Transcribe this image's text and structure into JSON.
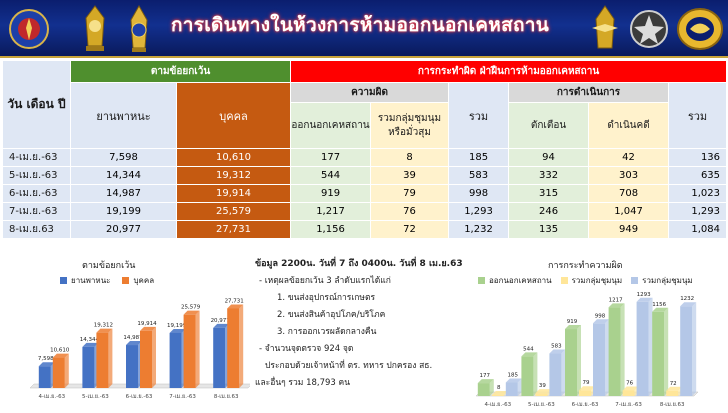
{
  "header": {
    "title": "การเดินทางในห้วงการห้ามออกนอกเคหสถาน"
  },
  "table": {
    "date_header": "วัน เดือน ปี",
    "exempt_header": "ตามข้อยกเว้น",
    "violate_header": "การกระทำผิด ฝ่าฝืนการห้ามออกเคหสถาน",
    "vehicle_header": "ยานพาหนะ",
    "person_header": "บุคคล",
    "offense_header": "ความผิด",
    "offense_out_header": "ออกนอกเคหสถาน",
    "offense_group_header": "รวมกลุ่มชุมนุม หรือมั่วสุม",
    "total_header": "รวม",
    "action_header": "การดำเนินการ",
    "warn_header": "ตักเตือน",
    "prosecute_header": "ดำเนินคดี",
    "total2_header": "รวม",
    "rows": [
      {
        "date": "4-เม.ย.-63",
        "vehicle": "7,598",
        "person": "10,610",
        "out": "177",
        "group": "8",
        "total": "185",
        "warn": "94",
        "prosecute": "42",
        "total2": "136"
      },
      {
        "date": "5-เม.ย.-63",
        "vehicle": "14,344",
        "person": "19,312",
        "out": "544",
        "group": "39",
        "total": "583",
        "warn": "332",
        "prosecute": "303",
        "total2": "635"
      },
      {
        "date": "6-เม.ย.-63",
        "vehicle": "14,987",
        "person": "19,914",
        "out": "919",
        "group": "79",
        "total": "998",
        "warn": "315",
        "prosecute": "708",
        "total2": "1,023"
      },
      {
        "date": "7-เม.ย.-63",
        "vehicle": "19,199",
        "person": "25,579",
        "out": "1,217",
        "group": "76",
        "total": "1,293",
        "warn": "246",
        "prosecute": "1,047",
        "total2": "1,293"
      },
      {
        "date": "8-เม.ย.63",
        "vehicle": "20,977",
        "person": "27,731",
        "out": "1,156",
        "group": "72",
        "total": "1,232",
        "warn": "135",
        "prosecute": "949",
        "total2": "1,084"
      }
    ]
  },
  "info": {
    "title": "ข้อมูล 2200น. วันที่ 7 ถึง 0400น. วันที่ 8 เม.ย.63",
    "lines": [
      "- เหตุผลข้อยกเว้น 3 ลำดับแรกได้แก่",
      "1. ขนส่งอุปกรณ์การเกษตร",
      "2. ขนส่งสินค้าอุปโภค/บริโภค",
      "3. การออกเวรผลัดกลางคืน",
      "- จำนวนจุดตรวจ 924 จุด",
      "ประกอบด้วยเจ้าหน้าที่ ตร. ทหาร ปกครอง สธ.",
      "และอื่นๆ รวม 18,793 คน"
    ]
  },
  "chart_data": [
    {
      "type": "bar",
      "title": "ตามข้อยกเว้น",
      "categories": [
        "4-เม.ย.-63",
        "5-เม.ย.-63",
        "6-เม.ย.-63",
        "7-เม.ย.-63",
        "8-เม.ย.63"
      ],
      "series": [
        {
          "name": "ยานพาหนะ",
          "values": [
            7598,
            14344,
            14987,
            19199,
            20977
          ],
          "color": "#4472c4"
        },
        {
          "name": "บุคคล",
          "values": [
            10610,
            19312,
            19914,
            25579,
            27731
          ],
          "color": "#ed7d31"
        }
      ],
      "labels": [
        [
          "7,598",
          "14,344",
          "14,987",
          "19,199",
          "20,977"
        ],
        [
          "10,610",
          "19,312",
          "19,914",
          "25,579",
          "27,731"
        ]
      ],
      "ylim": [
        0,
        30000
      ],
      "legend": "top"
    },
    {
      "type": "bar",
      "title": "การกระทำความผิด",
      "categories": [
        "4-เม.ย.-63",
        "5-เม.ย.-63",
        "6-เม.ย.-63",
        "7-เม.ย.-63",
        "8-เม.ย.63"
      ],
      "series": [
        {
          "name": "ออกนอกเคหสถาน",
          "values": [
            177,
            544,
            919,
            1217,
            1156
          ],
          "color": "#a9d18e"
        },
        {
          "name": "รวมกลุ่มชุมนุม",
          "values": [
            8,
            39,
            79,
            76,
            72
          ],
          "color": "#ffe699"
        },
        {
          "name": "รวมกลุ่มชุมนุม",
          "values": [
            185,
            583,
            998,
            1293,
            1232
          ],
          "color": "#b4c7e7"
        }
      ],
      "labels": [
        [
          "177",
          "544",
          "919",
          "1217",
          "1156"
        ],
        [
          "8",
          "39",
          "79",
          "76",
          "72"
        ],
        [
          "185",
          "583",
          "998",
          "1293",
          "1232"
        ]
      ],
      "ylim": [
        0,
        1400
      ],
      "legend": "top"
    }
  ]
}
